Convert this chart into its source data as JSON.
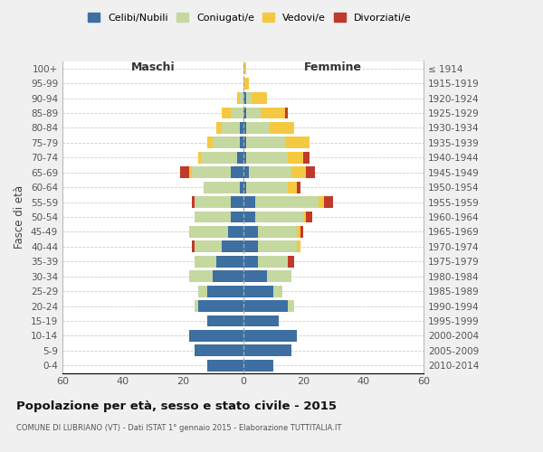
{
  "age_groups": [
    "100+",
    "95-99",
    "90-94",
    "85-89",
    "80-84",
    "75-79",
    "70-74",
    "65-69",
    "60-64",
    "55-59",
    "50-54",
    "45-49",
    "40-44",
    "35-39",
    "30-34",
    "25-29",
    "20-24",
    "15-19",
    "10-14",
    "5-9",
    "0-4"
  ],
  "birth_years": [
    "≤ 1914",
    "1915-1919",
    "1920-1924",
    "1925-1929",
    "1930-1934",
    "1935-1939",
    "1940-1944",
    "1945-1949",
    "1950-1954",
    "1955-1959",
    "1960-1964",
    "1965-1969",
    "1970-1974",
    "1975-1979",
    "1980-1984",
    "1985-1989",
    "1990-1994",
    "1995-1999",
    "2000-2004",
    "2005-2009",
    "2010-2014"
  ],
  "colors": {
    "celibi": "#3d6fa0",
    "coniugati": "#c5d8a0",
    "vedovi": "#f5c842",
    "divorziati": "#c0392b"
  },
  "maschi": {
    "celibi": [
      0,
      0,
      0,
      0,
      1,
      1,
      2,
      4,
      1,
      4,
      4,
      5,
      7,
      9,
      10,
      12,
      15,
      12,
      18,
      16,
      12
    ],
    "coniugati": [
      0,
      0,
      1,
      4,
      6,
      9,
      12,
      13,
      12,
      12,
      12,
      13,
      9,
      7,
      8,
      3,
      1,
      0,
      0,
      0,
      0
    ],
    "vedovi": [
      0,
      0,
      1,
      3,
      2,
      2,
      1,
      1,
      0,
      0,
      0,
      0,
      0,
      0,
      0,
      0,
      0,
      0,
      0,
      0,
      0
    ],
    "divorziati": [
      0,
      0,
      0,
      0,
      0,
      0,
      0,
      3,
      0,
      1,
      0,
      0,
      1,
      0,
      0,
      0,
      0,
      0,
      0,
      0,
      0
    ]
  },
  "femmine": {
    "celibi": [
      0,
      0,
      1,
      1,
      1,
      1,
      1,
      2,
      1,
      4,
      4,
      5,
      5,
      5,
      8,
      10,
      15,
      12,
      18,
      16,
      10
    ],
    "coniugati": [
      0,
      0,
      2,
      5,
      8,
      13,
      14,
      14,
      14,
      21,
      16,
      13,
      13,
      10,
      8,
      3,
      2,
      0,
      0,
      0,
      0
    ],
    "vedovi": [
      1,
      2,
      5,
      8,
      8,
      8,
      5,
      5,
      3,
      2,
      1,
      1,
      1,
      0,
      0,
      0,
      0,
      0,
      0,
      0,
      0
    ],
    "divorziati": [
      0,
      0,
      0,
      1,
      0,
      0,
      2,
      3,
      1,
      3,
      2,
      1,
      0,
      2,
      0,
      0,
      0,
      0,
      0,
      0,
      0
    ]
  },
  "xlim": 60,
  "title": "Popolazione per età, sesso e stato civile - 2015",
  "subtitle": "COMUNE DI LUBRIANO (VT) - Dati ISTAT 1° gennaio 2015 - Elaborazione TUTTITALIA.IT",
  "ylabel_left": "Fasce di età",
  "xlabel_left": "Maschi",
  "xlabel_right": "Femmine",
  "bg_color": "#f0f0f0",
  "plot_bg": "#ffffff",
  "grid_color": "#cccccc"
}
